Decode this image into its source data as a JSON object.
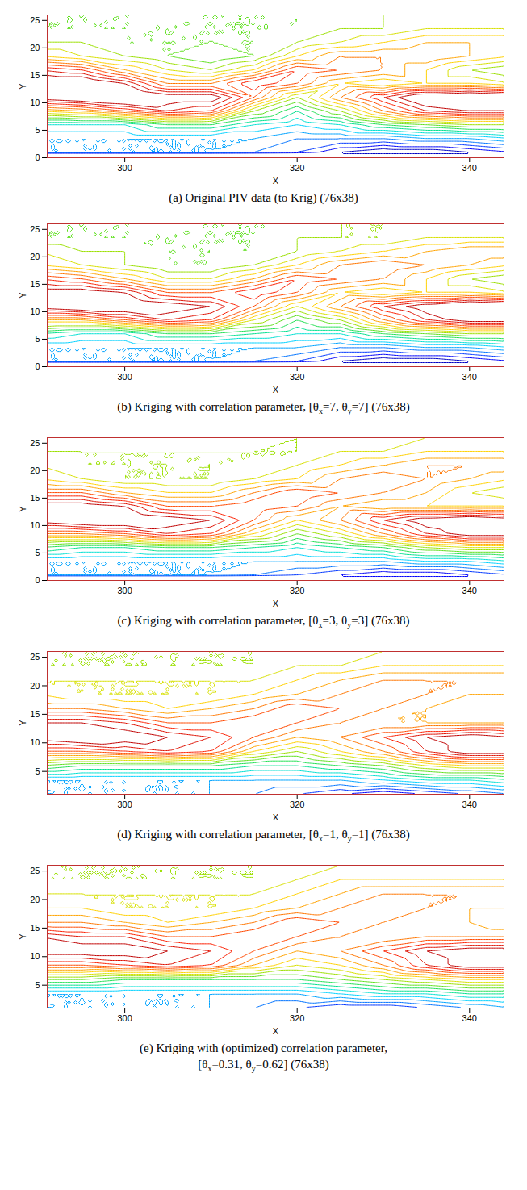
{
  "chart_data": [
    {
      "type": "contour",
      "label": "(a)",
      "caption": [
        [
          {
            "text": "Original PIV data (to Krig) (76x38)"
          }
        ]
      ],
      "xlabel": "X",
      "ylabel": "Y",
      "xlim": [
        291,
        344
      ],
      "xticks": [
        300,
        320,
        340
      ],
      "ylim": [
        0,
        26
      ],
      "yticks": [
        0,
        5,
        10,
        15,
        20,
        25
      ],
      "levels": [
        0.5,
        1,
        1.5,
        2,
        2.5,
        3,
        3.5,
        4,
        4.5,
        5,
        5.5,
        6,
        6.5,
        7,
        7.5,
        8,
        8.5,
        9,
        9.5,
        10
      ],
      "x": [
        290,
        295,
        300,
        305,
        310,
        315,
        320,
        325,
        330,
        335,
        340,
        345
      ],
      "y": [
        1,
        3.5,
        6,
        8.5,
        11,
        13.5,
        16,
        18.5,
        21,
        23.5,
        26
      ],
      "values": [
        [
          3,
          3,
          3,
          3,
          3,
          2.5,
          2,
          1,
          0.5,
          0.5,
          1,
          1.5
        ],
        [
          3,
          3,
          3,
          3,
          3,
          3,
          2.5,
          2.5,
          2.5,
          3,
          3,
          3.5
        ],
        [
          4,
          4,
          4,
          5,
          5,
          4,
          3.5,
          4,
          5,
          5.5,
          6,
          6
        ],
        [
          7,
          7.5,
          8.5,
          9.5,
          9,
          6,
          4.5,
          6,
          8,
          9.5,
          10,
          10
        ],
        [
          10.5,
          11,
          11.5,
          10.5,
          10.5,
          8.5,
          6,
          8,
          9.5,
          11,
          11.5,
          11
        ],
        [
          11,
          11,
          10,
          8,
          8,
          9.5,
          8.5,
          7,
          6.5,
          7,
          7,
          6.5
        ],
        [
          9.5,
          9,
          7.5,
          6.5,
          6,
          7,
          9,
          8.5,
          8,
          7,
          6,
          5.5
        ],
        [
          7,
          6.5,
          6,
          5.5,
          5,
          5.5,
          7,
          8,
          8,
          8,
          7.5,
          7
        ],
        [
          6,
          6,
          5.5,
          5.5,
          5.5,
          5.5,
          6,
          6.5,
          7,
          7.5,
          7.5,
          7.5
        ],
        [
          5.5,
          5.5,
          5.5,
          5.5,
          5.5,
          5.5,
          5.5,
          6,
          6,
          6.5,
          6.5,
          6.5
        ],
        [
          5.5,
          5.5,
          5.5,
          5.5,
          5.5,
          5.5,
          5.5,
          5.5,
          6,
          6,
          6,
          6
        ]
      ]
    },
    {
      "type": "contour",
      "label": "(b)",
      "caption": [
        [
          {
            "text": "Kriging with correlation parameter, [θ"
          },
          {
            "sub": "x"
          },
          {
            "text": "=7, θ"
          },
          {
            "sub": "y"
          },
          {
            "text": "=7] (76x38)"
          }
        ]
      ],
      "xlabel": "X",
      "ylabel": "Y",
      "xlim": [
        291,
        344
      ],
      "xticks": [
        300,
        320,
        340
      ],
      "ylim": [
        0,
        26
      ],
      "yticks": [
        0,
        5,
        10,
        15,
        20,
        25
      ],
      "levels": [
        0.5,
        1,
        1.5,
        2,
        2.5,
        3,
        3.5,
        4,
        4.5,
        5,
        5.5,
        6,
        6.5,
        7,
        7.5,
        8,
        8.5,
        9,
        9.5,
        10
      ],
      "x": [
        290,
        295,
        300,
        305,
        310,
        315,
        320,
        325,
        330,
        335,
        340,
        345
      ],
      "y": [
        1,
        3.5,
        6,
        8.5,
        11,
        13.5,
        16,
        18.5,
        21,
        23.5,
        26
      ],
      "values": [
        [
          3,
          3,
          3,
          3,
          3,
          2.5,
          2,
          1,
          0.5,
          0.5,
          1,
          1.5
        ],
        [
          3,
          3,
          3,
          3,
          3,
          3,
          3,
          2.5,
          2.5,
          3,
          3,
          3.5
        ],
        [
          4.5,
          4,
          4,
          5,
          5,
          4.5,
          4,
          4,
          5,
          5.5,
          6,
          6
        ],
        [
          7.5,
          7.5,
          8.5,
          9.5,
          9,
          6.5,
          5,
          6,
          8,
          9.5,
          10.5,
          10.5
        ],
        [
          10.5,
          11,
          11,
          10.5,
          10,
          8.5,
          6.5,
          8,
          9.5,
          10.5,
          11.5,
          11
        ],
        [
          10.5,
          10.5,
          10,
          8.5,
          8.5,
          9.5,
          8.5,
          7,
          6.5,
          7,
          7,
          6.5
        ],
        [
          9,
          8.5,
          7.5,
          6.5,
          6.5,
          7.5,
          9,
          8.5,
          8,
          7,
          6,
          5.5
        ],
        [
          7,
          6.5,
          6,
          5.5,
          5.5,
          6,
          7,
          8,
          8.5,
          8,
          7.5,
          7
        ],
        [
          6.5,
          6,
          6,
          5.5,
          5.5,
          5.5,
          6,
          6.5,
          7,
          7.5,
          8,
          8
        ],
        [
          5.5,
          5.5,
          5.5,
          5.5,
          5.5,
          5.5,
          6,
          6,
          6,
          6.5,
          6.5,
          6.5
        ],
        [
          5.5,
          5.5,
          5.5,
          5.5,
          5.5,
          5.5,
          5.5,
          6,
          6,
          6,
          6,
          6
        ]
      ]
    },
    {
      "type": "contour",
      "label": "(c)",
      "caption": [
        [
          {
            "text": "Kriging with correlation parameter, [θ"
          },
          {
            "sub": "x"
          },
          {
            "text": "=3, θ"
          },
          {
            "sub": "y"
          },
          {
            "text": "=3] (76x38)"
          }
        ]
      ],
      "xlabel": "X",
      "ylabel": "Y",
      "xlim": [
        291,
        344
      ],
      "xticks": [
        300,
        320,
        340
      ],
      "ylim": [
        0,
        26
      ],
      "yticks": [
        0,
        5,
        10,
        15,
        20,
        25
      ],
      "levels": [
        0.5,
        1,
        1.5,
        2,
        2.5,
        3,
        3.5,
        4,
        4.5,
        5,
        5.5,
        6,
        6.5,
        7,
        7.5,
        8,
        8.5,
        9,
        9.5,
        10
      ],
      "x": [
        290,
        295,
        300,
        305,
        310,
        315,
        320,
        325,
        330,
        335,
        340,
        345
      ],
      "y": [
        1,
        3.5,
        6,
        8.5,
        11,
        13.5,
        16,
        18.5,
        21,
        23.5,
        26
      ],
      "values": [
        [
          3,
          3,
          3,
          3,
          3,
          2.5,
          2,
          1.5,
          1,
          1,
          1.5,
          2
        ],
        [
          3,
          3,
          3,
          3,
          3,
          3,
          3,
          3,
          3,
          3.5,
          3.5,
          4
        ],
        [
          5,
          4.5,
          4.5,
          5,
          5,
          4.5,
          4,
          4.5,
          5,
          6,
          6.5,
          6.5
        ],
        [
          8,
          8,
          8.5,
          9.5,
          9,
          7,
          5.5,
          6.5,
          8,
          9.5,
          10.5,
          10.5
        ],
        [
          10.5,
          11,
          11,
          10.5,
          10,
          8.5,
          7,
          8,
          9.5,
          10.5,
          11,
          10.5
        ],
        [
          10.5,
          10.5,
          10,
          8.5,
          8.5,
          9,
          8.5,
          7.5,
          7,
          7,
          7,
          7
        ],
        [
          8.5,
          8.5,
          7.5,
          7,
          7,
          8,
          9,
          8.5,
          8,
          7.5,
          6.5,
          6
        ],
        [
          7,
          6.5,
          6,
          6,
          6,
          6.5,
          7,
          8,
          8.5,
          8,
          7.5,
          7
        ],
        [
          6.5,
          6,
          6,
          6,
          6,
          6,
          6.5,
          7,
          7.5,
          8,
          8,
          8
        ],
        [
          6,
          6,
          6,
          6,
          6,
          6,
          6,
          6.5,
          6.5,
          7,
          7,
          7
        ],
        [
          5.5,
          5.5,
          5.5,
          5.5,
          5.5,
          5.5,
          6,
          6,
          6,
          6.5,
          6.5,
          6.5
        ]
      ]
    },
    {
      "type": "contour",
      "label": "(d)",
      "caption": [
        [
          {
            "text": "Kriging with correlation parameter, [θ"
          },
          {
            "sub": "x"
          },
          {
            "text": "=1, θ"
          },
          {
            "sub": "y"
          },
          {
            "text": "=1] (76x38)"
          }
        ]
      ],
      "xlabel": "X",
      "ylabel": "Y",
      "xlim": [
        291,
        344
      ],
      "xticks": [
        300,
        320,
        340
      ],
      "ylim": [
        1,
        26
      ],
      "yticks": [
        5,
        10,
        15,
        20,
        25
      ],
      "levels": [
        0.5,
        1,
        1.5,
        2,
        2.5,
        3,
        3.5,
        4,
        4.5,
        5,
        5.5,
        6,
        6.5,
        7,
        7.5,
        8,
        8.5,
        9,
        9.5,
        10
      ],
      "x": [
        290,
        295,
        300,
        305,
        310,
        315,
        320,
        325,
        330,
        335,
        340,
        345
      ],
      "y": [
        1,
        3.5,
        6,
        8.5,
        11,
        13.5,
        16,
        18.5,
        21,
        23.5,
        26
      ],
      "values": [
        [
          3,
          3,
          3,
          3,
          3,
          2.5,
          2,
          1.5,
          1,
          1.5,
          2,
          2.5
        ],
        [
          3,
          3,
          3,
          3,
          3,
          3,
          3,
          3,
          3.5,
          4,
          4,
          4.5
        ],
        [
          5.5,
          5,
          5,
          5,
          5,
          4.5,
          4.5,
          5,
          5.5,
          6.5,
          7,
          7
        ],
        [
          8.5,
          8.5,
          9,
          9.5,
          9,
          7,
          6,
          7,
          8,
          9.5,
          10.5,
          10.5
        ],
        [
          10.5,
          11,
          10.5,
          10,
          9.5,
          8.5,
          7.5,
          8,
          9,
          10,
          10.5,
          10
        ],
        [
          10,
          10,
          9.5,
          8.5,
          8.5,
          9,
          8.5,
          8,
          7.5,
          7.5,
          7.5,
          7.5
        ],
        [
          8,
          8,
          7.5,
          7,
          7.5,
          8,
          9,
          8.5,
          8,
          7.5,
          7,
          7
        ],
        [
          7,
          6.5,
          6.5,
          6.5,
          6.5,
          7,
          7.5,
          8,
          8.5,
          8,
          7.5,
          7.5
        ],
        [
          6.5,
          6.5,
          6.5,
          6.5,
          6.5,
          6.5,
          7,
          7.5,
          8,
          8,
          8,
          8
        ],
        [
          6,
          6,
          6,
          6,
          6,
          6,
          6.5,
          6.5,
          7,
          7,
          7,
          7
        ],
        [
          6,
          6,
          6,
          6,
          6,
          6,
          6,
          6,
          6.5,
          6.5,
          6.5,
          6.5
        ]
      ]
    },
    {
      "type": "contour",
      "label": "(e)",
      "caption": [
        [
          {
            "text": "Kriging with (optimized) correlation parameter,"
          }
        ],
        [
          {
            "text": "[θ"
          },
          {
            "sub": "x"
          },
          {
            "text": "=0.31, θ"
          },
          {
            "sub": "y"
          },
          {
            "text": "=0.62] (76x38)"
          }
        ]
      ],
      "xlabel": "X",
      "ylabel": "Y",
      "xlim": [
        291,
        344
      ],
      "xticks": [
        300,
        320,
        340
      ],
      "ylim": [
        1,
        26
      ],
      "yticks": [
        5,
        10,
        15,
        20,
        25
      ],
      "levels": [
        0.5,
        1,
        1.5,
        2,
        2.5,
        3,
        3.5,
        4,
        4.5,
        5,
        5.5,
        6,
        6.5,
        7,
        7.5,
        8,
        8.5,
        9,
        9.5,
        10
      ],
      "x": [
        290,
        295,
        300,
        305,
        310,
        315,
        320,
        325,
        330,
        335,
        340,
        345
      ],
      "y": [
        1,
        3.5,
        6,
        8.5,
        11,
        13.5,
        16,
        18.5,
        21,
        23.5,
        26
      ],
      "values": [
        [
          3,
          3,
          3,
          3,
          3,
          2.5,
          2,
          1.5,
          1.5,
          2,
          2.5,
          3
        ],
        [
          3,
          3,
          3,
          3,
          3,
          3,
          3,
          3.5,
          4,
          4,
          4.5,
          4.5
        ],
        [
          5.5,
          5.5,
          5,
          5,
          5,
          5,
          5,
          5.5,
          6,
          6.5,
          7,
          7
        ],
        [
          8.5,
          8.5,
          9,
          9.5,
          9,
          7.5,
          6.5,
          7,
          8,
          9.5,
          10.5,
          10.5
        ],
        [
          10.5,
          10.5,
          10.5,
          10,
          9.5,
          8.5,
          7.5,
          8,
          9,
          10,
          10.5,
          10.5
        ],
        [
          10,
          9.5,
          9.5,
          8.5,
          8.5,
          9,
          8.5,
          8,
          7.5,
          8,
          8,
          8
        ],
        [
          8,
          8,
          7.5,
          7,
          7.5,
          8,
          9,
          8.5,
          8,
          7.5,
          7.5,
          7
        ],
        [
          7,
          7,
          6.5,
          6.5,
          6.5,
          7,
          7.5,
          8,
          8.5,
          8,
          7.5,
          7.5
        ],
        [
          6.5,
          6.5,
          6.5,
          6.5,
          6.5,
          6.5,
          7,
          7.5,
          8,
          8,
          8,
          8
        ],
        [
          6,
          6,
          6,
          6,
          6,
          6,
          6.5,
          7,
          7,
          7,
          7,
          7
        ],
        [
          6,
          6,
          6,
          6,
          6,
          6,
          6,
          6.5,
          6.5,
          6.5,
          6.5,
          6.5
        ]
      ]
    }
  ]
}
